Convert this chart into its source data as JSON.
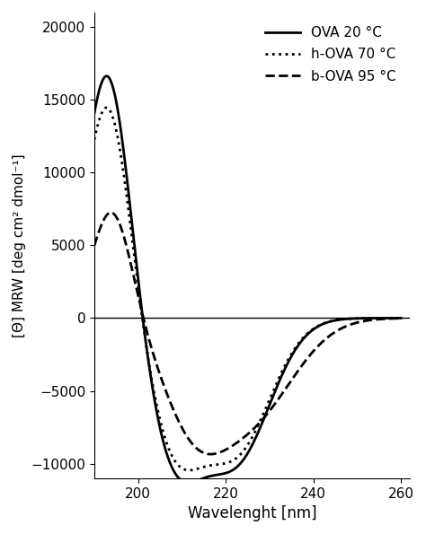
{
  "title": "",
  "xlabel": "Wavelenght [nm]",
  "ylabel": "[Θ] MRW [deg cm² dmol⁻¹]",
  "xlim": [
    190,
    262
  ],
  "ylim": [
    -11000,
    21000
  ],
  "xticks": [
    200,
    220,
    240,
    260
  ],
  "yticks": [
    -10000,
    -5000,
    0,
    5000,
    10000,
    15000,
    20000
  ],
  "legend": [
    {
      "label": "OVA 20 °C",
      "linestyle": "-"
    },
    {
      "label": "h-OVA 70 °C",
      "linestyle": ":"
    },
    {
      "label": "b-OVA 95 °C",
      "linestyle": "--"
    }
  ],
  "line_color": "#000000",
  "background_color": "#ffffff",
  "font_size": 12,
  "legend_font_size": 11
}
